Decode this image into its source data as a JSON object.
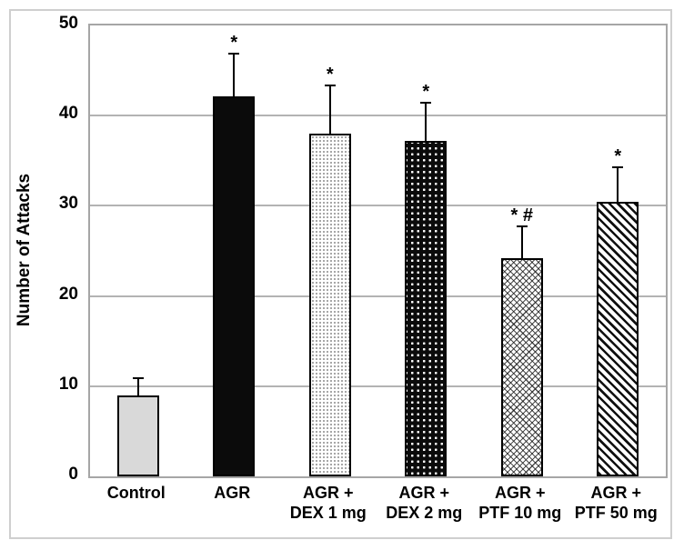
{
  "figure": {
    "background": "#ffffff",
    "outer_border_color": "#cfcfcf"
  },
  "chart_data": {
    "type": "bar",
    "title": "",
    "xlabel": "",
    "ylabel": "Number of Attacks",
    "ylim": [
      0,
      50
    ],
    "yticks": [
      0,
      10,
      20,
      30,
      40,
      50
    ],
    "grid": "horizontal",
    "legend": "none",
    "categories": [
      "Control",
      "AGR",
      "AGR + DEX 1 mg",
      "AGR + DEX 2 mg",
      "AGR + PTF 10 mg",
      "AGR + PTF 50 mg"
    ],
    "category_lines": [
      [
        "Control"
      ],
      [
        "AGR"
      ],
      [
        "AGR +",
        "DEX 1 mg"
      ],
      [
        "AGR +",
        "DEX 2 mg"
      ],
      [
        "AGR +",
        "PTF 10 mg"
      ],
      [
        "AGR +",
        "PTF 50 mg"
      ]
    ],
    "values": [
      9,
      42.1,
      38,
      37.2,
      24.2,
      30.4
    ],
    "errors_upper": [
      1.8,
      4.7,
      5.2,
      4.1,
      3.4,
      3.8
    ],
    "annotations": [
      "",
      "*",
      "*",
      "*",
      "* #",
      "*"
    ],
    "bar_patterns": [
      "solid-gray",
      "solid-black",
      "fine-dots",
      "plus-grid",
      "diamond-lattice",
      "diagonal-stripes"
    ],
    "colors": {
      "gridline": "#b3b3b3",
      "plot_border": "#a6a6a6",
      "bar_edge": "#000000",
      "control_fill": "#d9d9d9",
      "black_fill": "#0b0b0b"
    }
  }
}
